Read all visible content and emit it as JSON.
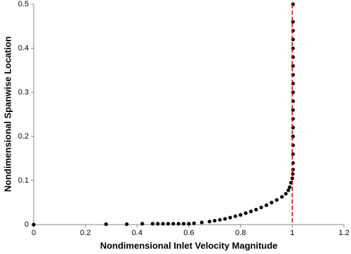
{
  "chart_data": {
    "type": "scatter",
    "x_label": "Nondimensional Inlet Velocity Magnitude",
    "y_label": "Nondimensional Spanwise Location",
    "series": [
      {
        "color": "#000000",
        "x": [
          0,
          0.28,
          0.36,
          0.42,
          0.46,
          0.48,
          0.5,
          0.52,
          0.54,
          0.56,
          0.58,
          0.6,
          0.62,
          0.65,
          0.68,
          0.7,
          0.72,
          0.74,
          0.76,
          0.78,
          0.8,
          0.82,
          0.84,
          0.86,
          0.88,
          0.9,
          0.92,
          0.94,
          0.96,
          0.975,
          0.985,
          0.99,
          0.995,
          1.0,
          1.002,
          1.003,
          1.003,
          1.003,
          1.003,
          1.003,
          1.003,
          1.003,
          1.003,
          1.003,
          1.003,
          1.003,
          1.003,
          1.003,
          1.003,
          1.003,
          1.003,
          1.003,
          1.003,
          1.003
        ],
        "y": [
          0,
          0.001,
          0.001,
          0.002,
          0.002,
          0.002,
          0.002,
          0.002,
          0.002,
          0.002,
          0.002,
          0.002,
          0.003,
          0.005,
          0.007,
          0.009,
          0.011,
          0.013,
          0.016,
          0.019,
          0.022,
          0.026,
          0.03,
          0.034,
          0.039,
          0.044,
          0.05,
          0.056,
          0.063,
          0.07,
          0.078,
          0.085,
          0.095,
          0.105,
          0.115,
          0.125,
          0.14,
          0.16,
          0.18,
          0.2,
          0.22,
          0.24,
          0.26,
          0.28,
          0.3,
          0.32,
          0.34,
          0.36,
          0.38,
          0.4,
          0.42,
          0.44,
          0.46,
          0.5
        ]
      }
    ],
    "reference_line": {
      "x": 1,
      "color": "#c00000",
      "dashed": true
    },
    "xlim": [
      0,
      1.2
    ],
    "xticks": [
      0,
      0.2,
      0.4,
      0.6,
      0.8,
      1,
      1.2
    ],
    "ylim": [
      0,
      0.5
    ],
    "yticks": [
      0,
      0.1,
      0.2,
      0.3,
      0.4,
      0.5
    ]
  }
}
